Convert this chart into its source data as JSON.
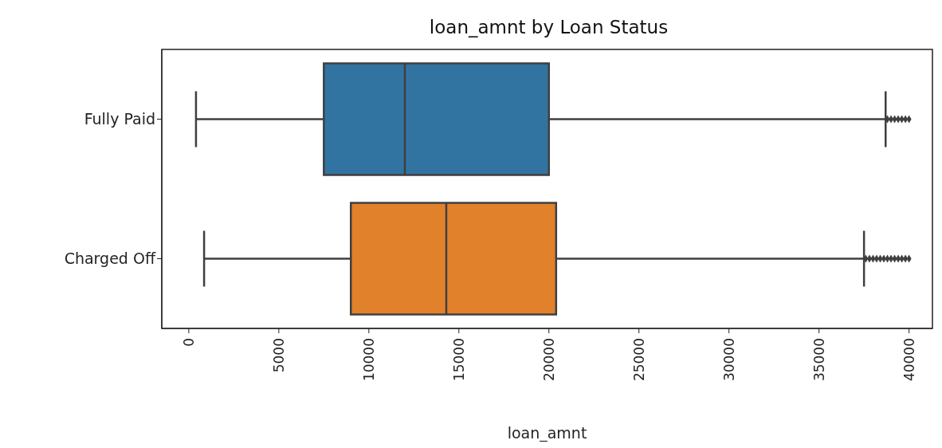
{
  "chart_data": {
    "type": "box",
    "orientation": "horizontal",
    "title": "loan_amnt by Loan Status",
    "xlabel": "loan_amnt",
    "categories": [
      "Fully Paid",
      "Charged Off"
    ],
    "colors": [
      "#3274a1",
      "#e1812c"
    ],
    "marker": "diamond",
    "boxes": [
      {
        "low": 400,
        "q1": 7500,
        "median": 12000,
        "q3": 20000,
        "high": 38700,
        "outliers": [
          38800,
          39000,
          39200,
          39400,
          39600,
          39800,
          40000
        ]
      },
      {
        "low": 850,
        "q1": 9000,
        "median": 14300,
        "q3": 20400,
        "high": 37500,
        "outliers": [
          37600,
          37800,
          38000,
          38200,
          38400,
          38600,
          38800,
          39000,
          39200,
          39400,
          39600,
          39800,
          40000
        ]
      }
    ],
    "xlim": [
      -1500,
      41300
    ],
    "xticks": [
      0,
      5000,
      10000,
      15000,
      20000,
      25000,
      30000,
      35000,
      40000
    ]
  }
}
